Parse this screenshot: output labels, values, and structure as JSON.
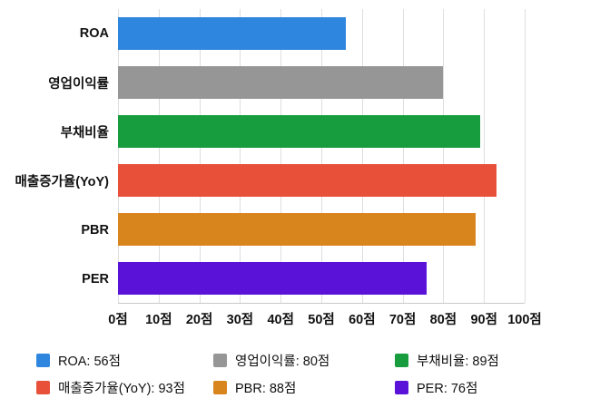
{
  "chart_data": {
    "type": "bar",
    "orientation": "horizontal",
    "title": "",
    "categories": [
      "ROA",
      "영업이익률",
      "부채비율",
      "매출증가율(YoY)",
      "PBR",
      "PER"
    ],
    "values": [
      56,
      80,
      89,
      93,
      88,
      76
    ],
    "unit": "점",
    "colors": [
      "#2e86de",
      "#969696",
      "#189d3e",
      "#e8503a",
      "#d9851e",
      "#5a12d8"
    ],
    "xlim": [
      0,
      100
    ],
    "x_tick_step": 10,
    "x_tick_labels": [
      "0점",
      "10점",
      "20점",
      "30점",
      "40점",
      "50점",
      "60점",
      "70점",
      "80점",
      "90점",
      "100점"
    ],
    "grid": true,
    "legend_position": "bottom",
    "legend": [
      {
        "label": "ROA: 56점",
        "color": "#2e86de"
      },
      {
        "label": "영업이익률: 80점",
        "color": "#969696"
      },
      {
        "label": "부채비율: 89점",
        "color": "#189d3e"
      },
      {
        "label": "매출증가율(YoY): 93점",
        "color": "#e8503a"
      },
      {
        "label": "PBR: 88점",
        "color": "#d9851e"
      },
      {
        "label": "PER: 76점",
        "color": "#5a12d8"
      }
    ]
  }
}
